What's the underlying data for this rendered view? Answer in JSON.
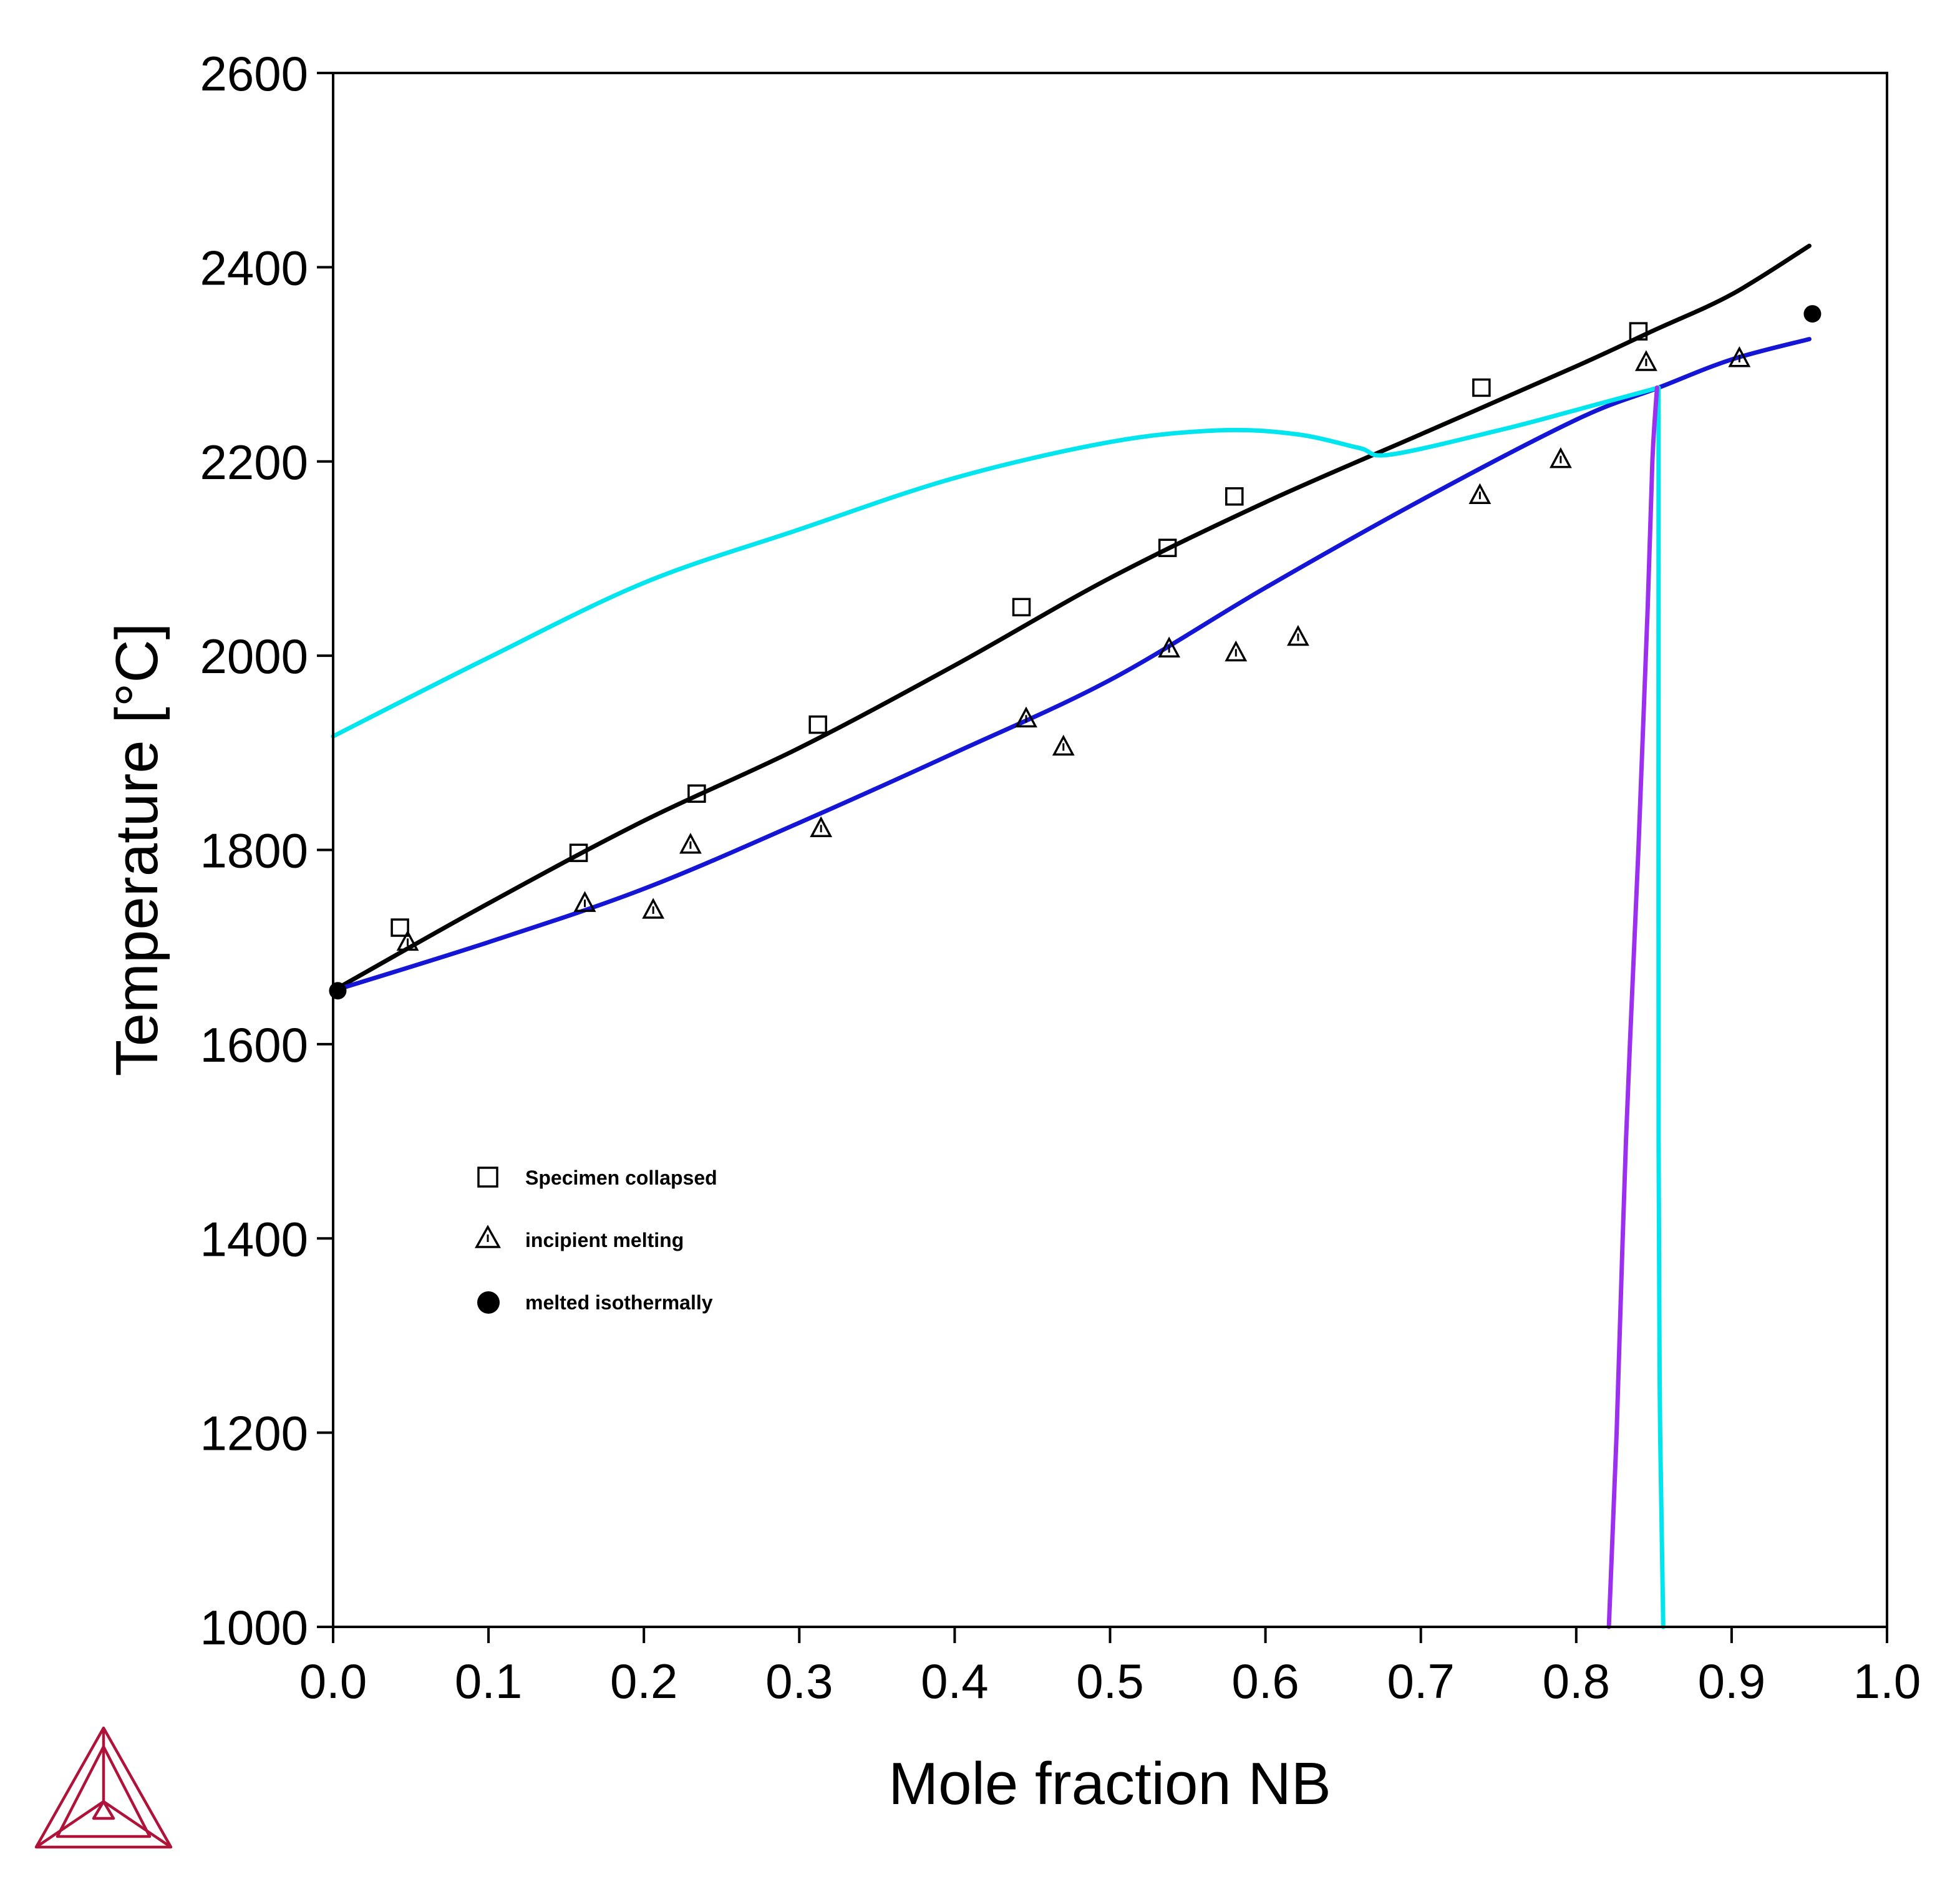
{
  "colors": {
    "black_curve": "#000000",
    "cyan_curve": "#00e5ee",
    "blue_curve": "#1515d6",
    "purple_curve": "#9b30f0",
    "logo": "#b0133a"
  },
  "logo": {
    "icon": "thermo-calc-triangle-logo"
  },
  "chart_data": {
    "type": "scatter",
    "title": "",
    "xlabel": "Mole fraction NB",
    "ylabel": "Temperature [°C]",
    "xlim": [
      0.0,
      1.0
    ],
    "ylim": [
      1000,
      2600
    ],
    "xticks": [
      "0.0",
      "0.1",
      "0.2",
      "0.3",
      "0.4",
      "0.5",
      "0.6",
      "0.7",
      "0.8",
      "0.9",
      "1.0"
    ],
    "yticks": [
      "1000",
      "1200",
      "1400",
      "1600",
      "1800",
      "2000",
      "2200",
      "2400",
      "2600"
    ],
    "grid": false,
    "legend_position": "left-middle",
    "series": [
      {
        "name": "Specimen collapsed",
        "kind": "marker",
        "marker": "square",
        "points": [
          [
            0.043,
            1720
          ],
          [
            0.158,
            1797
          ],
          [
            0.234,
            1858
          ],
          [
            0.312,
            1929
          ],
          [
            0.443,
            2050
          ],
          [
            0.537,
            2111
          ],
          [
            0.58,
            2164
          ],
          [
            0.739,
            2276
          ],
          [
            0.84,
            2334
          ]
        ]
      },
      {
        "name": "incipient melting",
        "kind": "marker",
        "marker": "triangle",
        "points": [
          [
            0.048,
            1705
          ],
          [
            0.162,
            1745
          ],
          [
            0.206,
            1738
          ],
          [
            0.23,
            1805
          ],
          [
            0.314,
            1822
          ],
          [
            0.446,
            1935
          ],
          [
            0.47,
            1906
          ],
          [
            0.538,
            2007
          ],
          [
            0.581,
            2003
          ],
          [
            0.621,
            2019
          ],
          [
            0.738,
            2165
          ],
          [
            0.79,
            2202
          ],
          [
            0.845,
            2302
          ],
          [
            0.905,
            2306
          ]
        ]
      },
      {
        "name": "melted isothermally",
        "kind": "marker",
        "marker": "circle",
        "points": [
          [
            0.003,
            1655
          ],
          [
            0.952,
            2352
          ]
        ]
      },
      {
        "kind": "line",
        "color_key": "black_curve",
        "points": [
          [
            0.0,
            1655
          ],
          [
            0.1,
            1745
          ],
          [
            0.2,
            1830
          ],
          [
            0.3,
            1905
          ],
          [
            0.4,
            1990
          ],
          [
            0.5,
            2080
          ],
          [
            0.6,
            2158
          ],
          [
            0.7,
            2228
          ],
          [
            0.8,
            2298
          ],
          [
            0.85,
            2335
          ],
          [
            0.9,
            2372
          ],
          [
            0.95,
            2422
          ]
        ]
      },
      {
        "kind": "line",
        "color_key": "blue_curve",
        "points": [
          [
            0.0,
            1655
          ],
          [
            0.1,
            1705
          ],
          [
            0.2,
            1760
          ],
          [
            0.3,
            1828
          ],
          [
            0.4,
            1900
          ],
          [
            0.5,
            1975
          ],
          [
            0.6,
            2070
          ],
          [
            0.7,
            2160
          ],
          [
            0.8,
            2243
          ],
          [
            0.853,
            2276
          ],
          [
            0.9,
            2305
          ],
          [
            0.95,
            2326
          ]
        ]
      },
      {
        "kind": "line",
        "color_key": "cyan_curve",
        "points": [
          [
            0.0,
            1917
          ],
          [
            0.1,
            1998
          ],
          [
            0.2,
            2075
          ],
          [
            0.3,
            2130
          ],
          [
            0.4,
            2183
          ],
          [
            0.5,
            2220
          ],
          [
            0.57,
            2232
          ],
          [
            0.62,
            2228
          ],
          [
            0.66,
            2214
          ],
          [
            0.68,
            2207
          ],
          [
            0.75,
            2232
          ],
          [
            0.8,
            2253
          ],
          [
            0.853,
            2276
          ]
        ]
      },
      {
        "kind": "line",
        "color_key": "cyan_curve",
        "points": [
          [
            0.853,
            2276
          ],
          [
            0.853,
            1500
          ],
          [
            0.854,
            1200
          ],
          [
            0.856,
            1000
          ]
        ]
      },
      {
        "kind": "line",
        "color_key": "purple_curve",
        "points": [
          [
            0.852,
            2276
          ],
          [
            0.849,
            2200
          ],
          [
            0.846,
            2050
          ],
          [
            0.84,
            1800
          ],
          [
            0.832,
            1500
          ],
          [
            0.826,
            1200
          ],
          [
            0.821,
            1000
          ]
        ]
      }
    ]
  }
}
